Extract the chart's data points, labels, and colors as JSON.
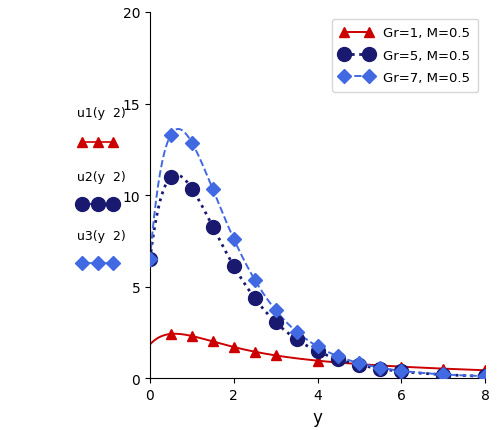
{
  "title": "",
  "xlabel": "y",
  "ylabel": "",
  "xlim": [
    0,
    8
  ],
  "ylim": [
    0,
    20
  ],
  "yticks": [
    0,
    5,
    10,
    15,
    20
  ],
  "xticks": [
    0,
    2,
    4,
    6,
    8
  ],
  "series": [
    {
      "label": "Gr=1, M=0.5",
      "line_color": "#cc0000",
      "marker_color": "#cc0000",
      "marker": "^",
      "linestyle": "-",
      "linewidth": 1.4,
      "markersize": 7,
      "profile_params": [
        1.85,
        2.8,
        1.3
      ],
      "marker_positions": [
        0.5,
        1.0,
        1.5,
        2.0,
        2.5,
        3.0,
        4.0,
        5.0,
        6.0,
        7.0,
        8.0
      ]
    },
    {
      "label": "Gr=5, M=0.5",
      "line_color": "#191970",
      "marker_color": "#191970",
      "marker": "o",
      "linestyle": ":",
      "linewidth": 2.0,
      "markersize": 10,
      "profile_params": [
        6.5,
        22.0,
        1.2
      ],
      "marker_positions": [
        0.0,
        0.5,
        1.0,
        1.5,
        2.0,
        2.5,
        3.0,
        3.5,
        4.0,
        4.5,
        5.0,
        5.5,
        6.0,
        7.0,
        8.0
      ]
    },
    {
      "label": "Gr=7, M=0.5",
      "line_color": "#4169E1",
      "marker_color": "#4169E1",
      "marker": "D",
      "linestyle": "--",
      "linewidth": 1.4,
      "markersize": 7,
      "profile_params": [
        6.5,
        30.0,
        1.2
      ],
      "marker_positions": [
        0.0,
        0.5,
        1.0,
        1.5,
        2.0,
        2.5,
        3.0,
        3.5,
        4.0,
        4.5,
        5.0,
        5.5,
        6.0,
        7.0,
        8.0
      ]
    }
  ],
  "left_labels": [
    {
      "text": "u1(y  2)",
      "yu": 14.5,
      "ym": 12.9,
      "color": "#cc0000",
      "marker": "^",
      "ms": 7
    },
    {
      "text": "u2(y  2)",
      "yu": 11.0,
      "ym": 9.5,
      "color": "#191970",
      "marker": "o",
      "ms": 10
    },
    {
      "text": "u3(y  2)",
      "yu": 7.8,
      "ym": 6.3,
      "color": "#4169E1",
      "marker": "D",
      "ms": 7
    }
  ],
  "legend_loc": "upper right",
  "figsize": [
    5.0,
    4.31
  ],
  "dpi": 100,
  "background_color": "#ffffff"
}
